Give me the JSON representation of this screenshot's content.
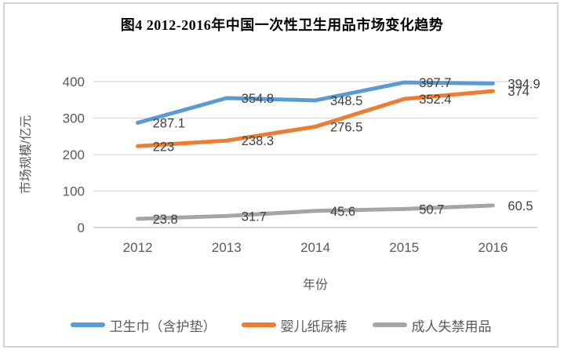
{
  "chart_data": {
    "type": "line",
    "title": "图4 2012-2016年中国一次性卫生用品市场变化趋势",
    "categories": [
      "2012",
      "2013",
      "2014",
      "2015",
      "2016"
    ],
    "series": [
      {
        "id": "sanitary-napkin",
        "name": "卫生巾（含护垫）",
        "color": "#5B9BD5",
        "values": [
          287.1,
          354.8,
          348.5,
          397.7,
          394.9
        ]
      },
      {
        "id": "baby-diaper",
        "name": "婴儿纸尿裤",
        "color": "#ED7D31",
        "values": [
          223,
          238.3,
          276.5,
          352.4,
          374
        ]
      },
      {
        "id": "adult-incontinence",
        "name": "成人失禁用品",
        "color": "#A5A5A5",
        "values": [
          23.8,
          31.7,
          45.6,
          50.7,
          60.5
        ]
      }
    ],
    "xlabel": "年份",
    "ylabel": "市场规模/亿元",
    "ylim": [
      0,
      400
    ],
    "yticks": [
      0,
      100,
      200,
      300,
      400
    ],
    "grid": true,
    "legend_position": "bottom",
    "data_labels": true
  },
  "colors": {
    "gridline": "#D9D9D9",
    "axis_line": "#BFBFBF",
    "axis_text": "#595959",
    "data_label_text": "#404040",
    "frame_border": "#D2D2D2",
    "background": "#FFFFFF"
  }
}
